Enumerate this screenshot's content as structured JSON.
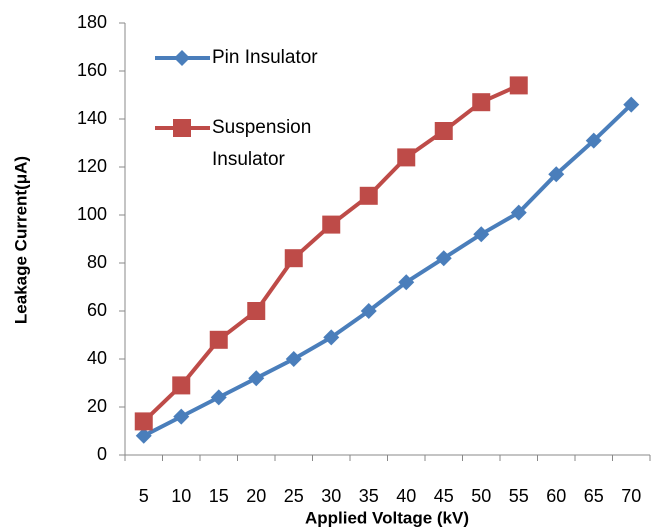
{
  "chart_data": {
    "type": "line",
    "x_label": "Applied Voltage (kV)",
    "y_label": "Leakage Current(μA)",
    "categories": [
      "5",
      "10",
      "15",
      "20",
      "25",
      "30",
      "35",
      "40",
      "45",
      "50",
      "55",
      "60",
      "65",
      "70"
    ],
    "series": [
      {
        "name": "Pin Insulator",
        "color": "#4a7ebb",
        "marker": "diamond",
        "values": [
          8,
          16,
          24,
          32,
          40,
          49,
          60,
          72,
          82,
          92,
          101,
          117,
          131,
          146
        ]
      },
      {
        "name": "Suspension Insulator",
        "color": "#be4b48",
        "marker": "square",
        "values": [
          14,
          29,
          48,
          60,
          82,
          96,
          108,
          124,
          135,
          147,
          154,
          null,
          null,
          null
        ]
      }
    ],
    "ylim": [
      0,
      180
    ],
    "yticks": [
      0,
      20,
      40,
      60,
      80,
      100,
      120,
      140,
      160,
      180
    ],
    "grid": false,
    "legend": "upper left"
  }
}
